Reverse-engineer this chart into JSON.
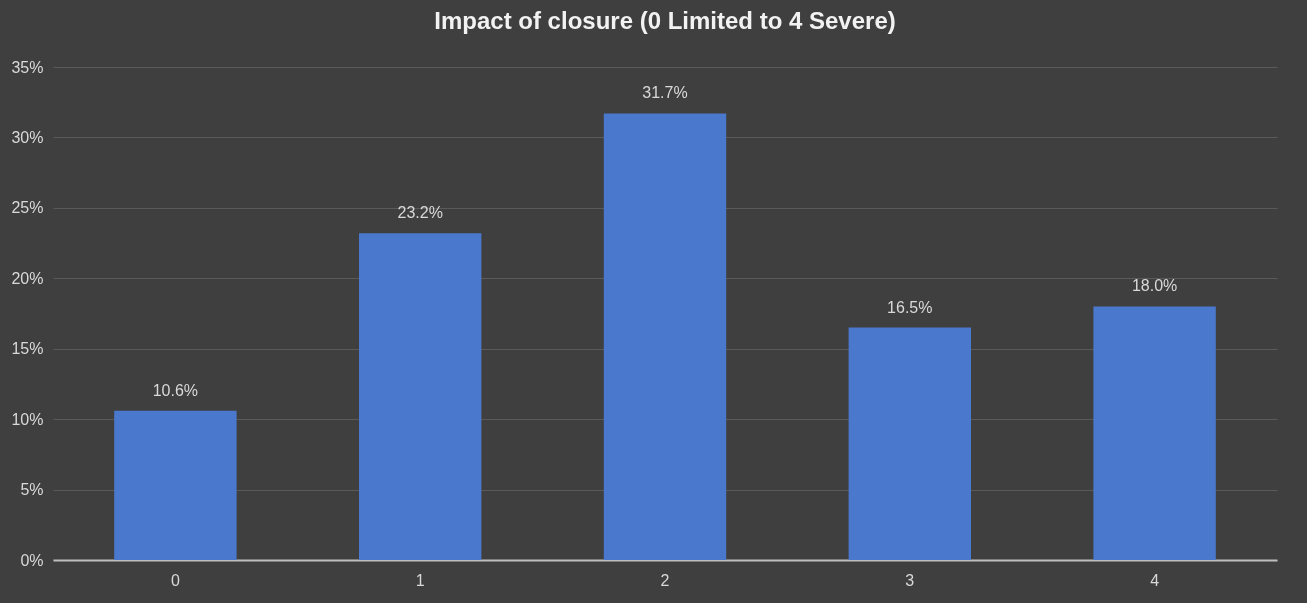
{
  "chart_data": {
    "type": "bar",
    "title": "Impact of closure (0 Limited to 4 Severe)",
    "categories": [
      "0",
      "1",
      "2",
      "3",
      "4"
    ],
    "values": [
      10.6,
      23.2,
      31.7,
      16.5,
      18.0
    ],
    "value_labels": [
      "10.6%",
      "23.2%",
      "31.7%",
      "16.5%",
      "18.0%"
    ],
    "color": "#4a78cc",
    "ylim": [
      0,
      35
    ],
    "yticks": [
      {
        "value": 0,
        "label": "0%"
      },
      {
        "value": 5,
        "label": "5%"
      },
      {
        "value": 10,
        "label": "10%"
      },
      {
        "value": 15,
        "label": "15%"
      },
      {
        "value": 20,
        "label": "20%"
      },
      {
        "value": 25,
        "label": "25%"
      },
      {
        "value": 30,
        "label": "30%"
      },
      {
        "value": 35,
        "label": "35%"
      }
    ],
    "grid": "y"
  }
}
